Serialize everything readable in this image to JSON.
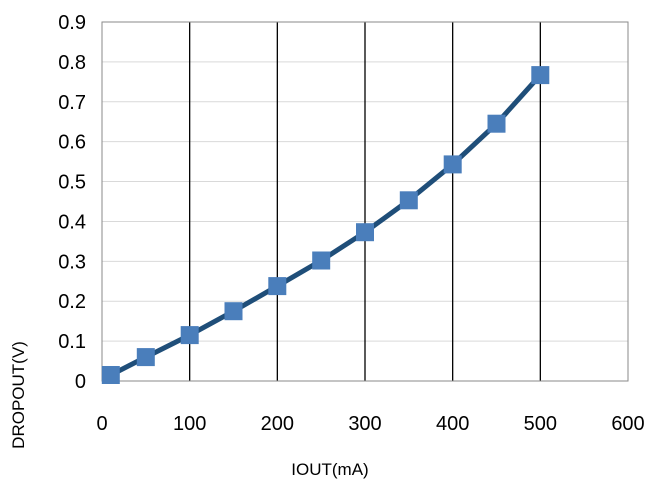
{
  "chart_data": {
    "type": "line",
    "xlabel": "IOUT(mA)",
    "ylabel": "DROPOUT(V)",
    "xlim": [
      0,
      600
    ],
    "ylim": [
      0,
      0.9
    ],
    "x_ticks": [
      "0",
      "100",
      "200",
      "300",
      "400",
      "500",
      "600"
    ],
    "y_ticks": [
      "0",
      "0.1",
      "0.2",
      "0.3",
      "0.4",
      "0.5",
      "0.6",
      "0.7",
      "0.8",
      "0.9"
    ],
    "grid": "vertical-and-horizontal",
    "series": [
      {
        "x": [
          10,
          50,
          100,
          150,
          200,
          250,
          300,
          350,
          400,
          450,
          500
        ],
        "y": [
          0.015,
          0.06,
          0.115,
          0.175,
          0.238,
          0.302,
          0.373,
          0.453,
          0.543,
          0.645,
          0.767
        ],
        "color": "#4a7ebb",
        "line_color": "#1f4e79",
        "marker": "square"
      }
    ]
  }
}
